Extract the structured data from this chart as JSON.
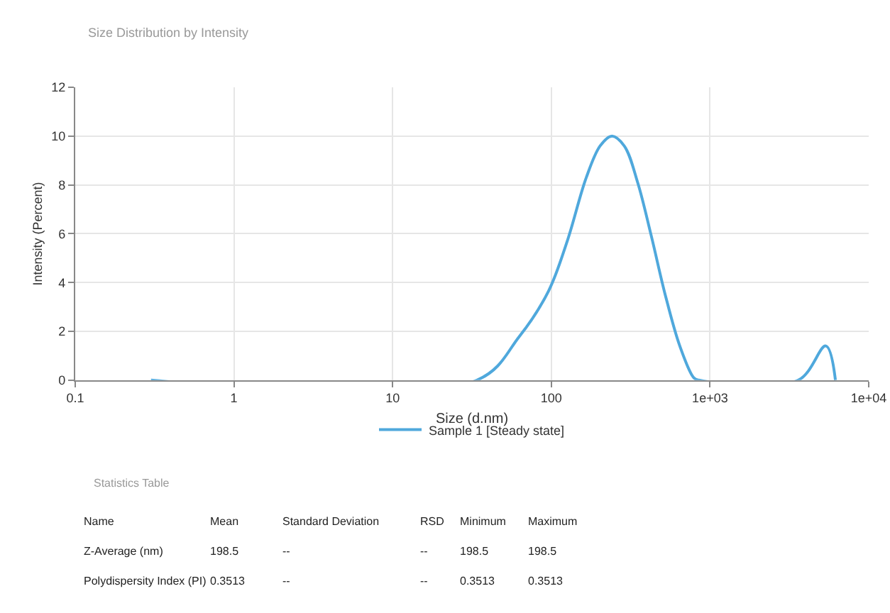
{
  "chart_data": {
    "type": "line",
    "title": "Size Distribution by Intensity",
    "xlabel": "Size (d.nm)",
    "ylabel": "Intensity (Percent)",
    "log": "x",
    "xlim": [
      0.1,
      10000
    ],
    "xticks": [
      0.1,
      1,
      10,
      100,
      {
        "value": 1000,
        "label": "1e+03"
      },
      {
        "value": 10000,
        "label": "1e+04"
      }
    ],
    "ylim": [
      0,
      12
    ],
    "yticks": [
      0,
      2,
      4,
      6,
      8,
      10,
      12
    ],
    "grid": true,
    "legend": "bottom",
    "marker": "none",
    "line_style": "solid",
    "series": [
      {
        "name": "Sample 1 [Steady state]",
        "color": "#4fa8dc",
        "x": [
          0.3,
          34,
          63,
          96,
          126,
          166,
          203,
          240,
          288,
          350,
          427,
          522,
          645,
          790,
          850,
          3600,
          5370,
          6170
        ],
        "values": [
          0,
          0,
          1.8,
          3.65,
          5.7,
          8.3,
          9.6,
          10.0,
          9.6,
          8.1,
          5.9,
          3.5,
          1.4,
          0.1,
          0,
          0,
          1.4,
          0
        ]
      }
    ],
    "annotations": [
      "Statistics Table",
      "Name",
      "Mean",
      "Standard Deviation",
      "RSD",
      "Minimum",
      "Maximum",
      "Z-Average (nm)",
      "198.5",
      "--",
      "--",
      "198.5",
      "198.5",
      "Polydispersity Index (PI)",
      "0.3513",
      "--",
      "--",
      "0.3513",
      "0.3513"
    ]
  }
}
